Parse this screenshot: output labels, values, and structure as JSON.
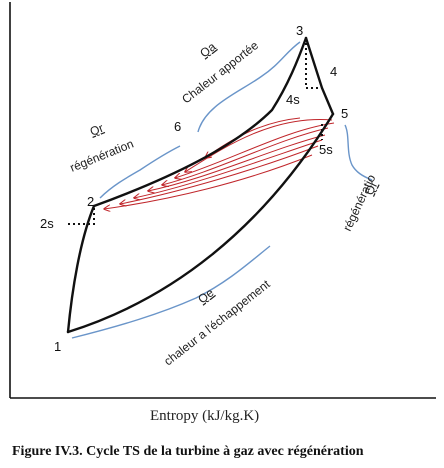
{
  "figure": {
    "caption": "Figure IV.3. Cycle TS de la turbine à gaz avec régénération",
    "x_axis_label": "Entropy (kJ/kg.K)"
  },
  "points": {
    "p1": "1",
    "p2": "2",
    "p2s": "2s",
    "p3": "3",
    "p4": "4",
    "p4s": "4s",
    "p5": "5",
    "p5s": "5s",
    "p6": "6"
  },
  "annotations": {
    "qa_symbol": "Qa",
    "qa_text": "Chaleur apportée",
    "qr_left_symbol": "Qr",
    "qr_left_text": "régénération",
    "qr_right_symbol": "Qr",
    "qr_right_text": "régénératio",
    "qe_symbol": "Qe",
    "qe_text": "chaleur a l'échappement"
  },
  "colors": {
    "curve": "#111111",
    "brace": "#6a95c9",
    "arrows": "#c0262b"
  }
}
